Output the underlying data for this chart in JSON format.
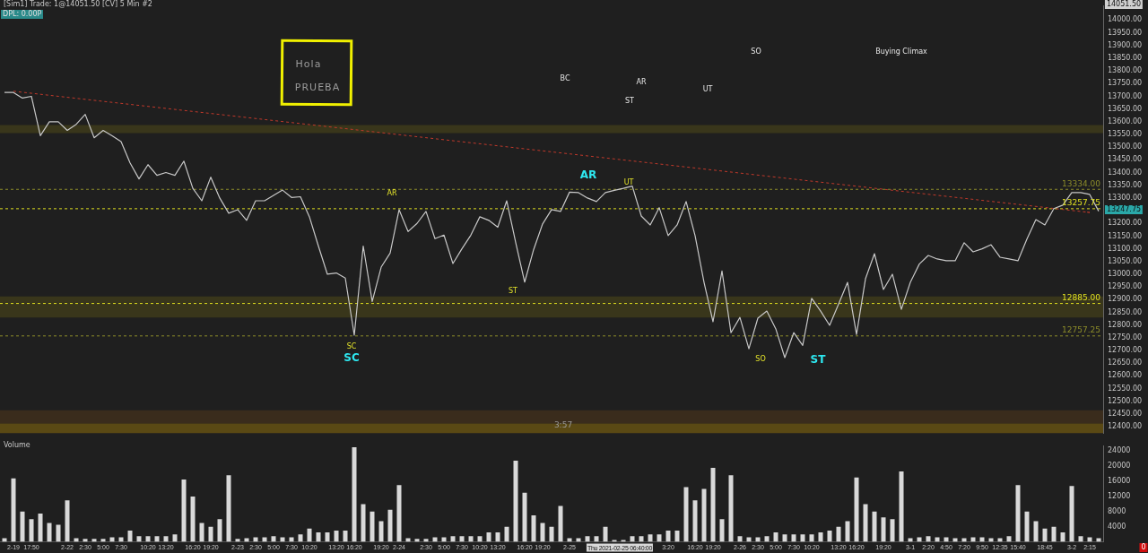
{
  "chart_data": [
    {
      "type": "line",
      "title": "[Sim1] Trade: 1@14051.50 [CV] 5 Min #2",
      "subtitle": "DPL: 0.00P",
      "categories": [
        null,
        "2-19",
        null,
        null,
        null,
        null,
        null,
        null,
        null,
        null,
        null,
        null,
        null,
        null,
        null,
        null,
        null,
        null,
        null,
        null,
        null,
        null,
        null,
        null,
        null,
        null,
        null,
        null,
        null,
        null,
        null,
        null,
        null,
        null,
        null,
        null,
        null,
        null,
        null,
        null,
        null,
        null,
        null,
        null,
        null,
        null,
        null,
        null,
        null,
        null,
        null,
        null,
        null,
        null,
        null,
        null,
        null,
        null,
        null,
        null,
        null,
        null,
        null,
        null,
        null,
        null,
        null,
        null,
        null,
        null,
        null,
        null,
        null,
        null,
        null,
        null,
        null,
        null,
        null,
        null,
        null,
        null,
        null,
        null,
        null,
        null,
        null,
        null,
        null,
        null,
        null,
        null,
        null,
        null,
        null,
        null,
        null,
        null,
        null,
        null,
        null,
        null,
        null,
        null,
        null,
        null,
        null,
        null,
        null,
        null,
        null,
        null,
        null,
        null,
        null,
        null,
        null,
        null,
        null,
        null,
        null,
        "2:15",
        null
      ],
      "ylim": [
        12375,
        14055
      ],
      "tick_labels": "y",
      "yticks": [
        {
          "value": 12400,
          "label": "12400.00"
        },
        {
          "value": 12450,
          "label": "12450.00"
        },
        {
          "value": 12500,
          "label": "12500.00"
        },
        {
          "value": 12550,
          "label": "12550.00"
        },
        {
          "value": 12600,
          "label": "12600.00"
        },
        {
          "value": 12650,
          "label": "12650.00"
        },
        {
          "value": 12700,
          "label": "12700.00"
        },
        {
          "value": 12750,
          "label": "12750.00"
        },
        {
          "value": 12800,
          "label": "12800.00"
        },
        {
          "value": 12850,
          "label": "12850.00"
        },
        {
          "value": 12900,
          "label": "12900.00"
        },
        {
          "value": 12950,
          "label": "12950.00"
        },
        {
          "value": 13000,
          "label": "13000.00"
        },
        {
          "value": 13050,
          "label": "13050.00"
        },
        {
          "value": 13100,
          "label": "13100.00"
        },
        {
          "value": 13150,
          "label": "13150.00"
        },
        {
          "value": 13200,
          "label": "13200.00"
        },
        {
          "value": 13300,
          "label": "13300.00"
        },
        {
          "value": 13350,
          "label": "13350.00"
        },
        {
          "value": 13400,
          "label": "13400.00"
        },
        {
          "value": 13450,
          "label": "13450.00"
        },
        {
          "value": 13500,
          "label": "13500.00"
        },
        {
          "value": 13550,
          "label": "13550.00"
        },
        {
          "value": 13600,
          "label": "13600.00"
        },
        {
          "value": 13650,
          "label": "13650.00"
        },
        {
          "value": 13700,
          "label": "13700.00"
        },
        {
          "value": 13750,
          "label": "13750.00"
        },
        {
          "value": 13800,
          "label": "13800.00"
        },
        {
          "value": 13850,
          "label": "13850.00"
        },
        {
          "value": 13900,
          "label": "13900.00"
        },
        {
          "value": 13950,
          "label": "13950.00"
        },
        {
          "value": 14000,
          "label": "14000.00"
        }
      ],
      "series": [
        {
          "color": "#c8c8c8",
          "values": [
            13715,
            13715,
            13693,
            13700,
            13545,
            13600,
            13600,
            13566,
            13590,
            13629,
            13537,
            13566,
            13545,
            13522,
            13438,
            13375,
            13431,
            13389,
            13400,
            13389,
            13445,
            13338,
            13289,
            13382,
            13300,
            13240,
            13254,
            13212,
            13289,
            13289,
            13310,
            13331,
            13302,
            13305,
            13226,
            13111,
            13000,
            13005,
            12985,
            12760,
            13111,
            12893,
            13028,
            13083,
            13254,
            13168,
            13200,
            13247,
            13140,
            13154,
            13042,
            13100,
            13154,
            13226,
            13212,
            13185,
            13289,
            13125,
            12969,
            13097,
            13198,
            13254,
            13247,
            13323,
            13321,
            13300,
            13286,
            13321,
            13330,
            13338,
            13347,
            13229,
            13194,
            13262,
            13152,
            13194,
            13286,
            13152,
            12968,
            12813,
            13013,
            12770,
            12830,
            12707,
            12827,
            12855,
            12785,
            12672,
            12770,
            12720,
            12905,
            12855,
            12799,
            12883,
            12968,
            12763,
            12982,
            13081,
            12940,
            13000,
            12862,
            12968,
            13040,
            13074,
            13060,
            13053,
            13053,
            13124,
            13088,
            13100,
            13116,
            13067,
            13060,
            13053,
            13138,
            13215,
            13194,
            13258,
            13272,
            13321,
            13321,
            13314,
            13248
          ]
        },
        {
          "type": "line",
          "color": "#c0392b",
          "line_style": "dashed",
          "x": [
            "2-19",
            "2:15"
          ],
          "values": [
            13720,
            13243
          ]
        }
      ],
      "bands": [
        {
          "axis": "y",
          "from": 13555,
          "to": 13587,
          "color": "#39361b"
        },
        {
          "axis": "y",
          "from": 12830,
          "to": 12913,
          "color": "#39361b"
        },
        {
          "axis": "y",
          "from": 12413,
          "to": 12465,
          "color": "#3a2c1c"
        },
        {
          "axis": "y",
          "from": 12375,
          "to": 12413,
          "color": "#5a4914"
        }
      ],
      "ref_lines": [
        {
          "axis": "y",
          "value": 13334,
          "label": "13334.00",
          "color": "#8d8d2a",
          "line_style": "dashed"
        },
        {
          "axis": "y",
          "value": 13257.75,
          "label": "13257.75",
          "color": "#e0e020",
          "line_style": "dashed"
        },
        {
          "axis": "y",
          "value": 12885,
          "label": "12885.00",
          "color": "#e0e020",
          "line_style": "dashed"
        },
        {
          "axis": "y",
          "value": 12757.25,
          "label": "12757.25",
          "color": "#8d8d2a",
          "line_style": "dashed"
        }
      ],
      "annotations": [
        "SC",
        "SC",
        "AR",
        "ST",
        "AR",
        "UT",
        "BC",
        "ST",
        "AR",
        "UT",
        "SO",
        "Buying Climax",
        "SO",
        "ST",
        "13247.75",
        "14051.50",
        "Hola",
        "PRUEBA",
        "3:57"
      ]
    },
    {
      "type": "bar",
      "title": "Volume",
      "color": "#d9d9d9",
      "categories": [
        null,
        "2-19",
        null,
        "17:50",
        null,
        null,
        null,
        "2-22",
        null,
        "2:30",
        null,
        "5:00",
        null,
        "7:30",
        null,
        null,
        "10:20",
        null,
        "13:20",
        null,
        null,
        "16:20",
        null,
        "19:20",
        null,
        null,
        "2-23",
        null,
        "2:30",
        null,
        "5:00",
        null,
        "7:30",
        null,
        "10:20",
        null,
        null,
        "13:20",
        null,
        "16:20",
        null,
        null,
        "19:20",
        null,
        "2-24",
        null,
        null,
        "2:30",
        null,
        "5:00",
        null,
        "7:30",
        null,
        "10:20",
        null,
        "13:20",
        null,
        null,
        "16:20",
        null,
        "19:20",
        null,
        null,
        "2-25",
        null,
        null,
        null,
        null,
        null,
        null,
        null,
        null,
        null,
        null,
        "3:20",
        null,
        null,
        "16:20",
        null,
        "19:20",
        null,
        null,
        "2-26",
        null,
        "2:30",
        null,
        "5:00",
        null,
        "7:30",
        null,
        "10:20",
        null,
        null,
        "13:20",
        null,
        "16:20",
        null,
        null,
        "19:20",
        null,
        null,
        "3-1",
        null,
        "2:20",
        null,
        "4:50",
        null,
        "7:20",
        null,
        "9:50",
        null,
        "12:35",
        null,
        "15:40",
        null,
        null,
        "18:45",
        null,
        null,
        "3-2",
        null,
        "2:15",
        null
      ],
      "values": [
        1000,
        16800,
        8000,
        6000,
        7500,
        5000,
        4500,
        11000,
        1000,
        800,
        800,
        800,
        1200,
        1200,
        3000,
        1500,
        1500,
        1500,
        1500,
        2000,
        16500,
        12000,
        5000,
        4000,
        6000,
        17600,
        800,
        1000,
        1200,
        1200,
        1500,
        1200,
        1200,
        2000,
        3500,
        2500,
        2500,
        3000,
        3000,
        25000,
        10000,
        8000,
        5500,
        8500,
        15000,
        1000,
        800,
        800,
        1200,
        1200,
        1500,
        1500,
        1500,
        1500,
        2500,
        2500,
        4000,
        21500,
        13000,
        7000,
        5000,
        4000,
        9500,
        1000,
        1000,
        1500,
        1500,
        4000,
        500,
        500,
        1500,
        1500,
        2000,
        2000,
        3000,
        3000,
        14500,
        11000,
        14000,
        19600,
        6000,
        17600,
        1500,
        1200,
        1200,
        1500,
        2500,
        2000,
        2000,
        2000,
        2000,
        2500,
        3000,
        4000,
        5500,
        17000,
        10000,
        8000,
        6500,
        6000,
        18600,
        1000,
        1200,
        1500,
        1200,
        1200,
        1000,
        1000,
        1200,
        1200,
        1000,
        1000,
        1500,
        15000,
        8000,
        5500,
        3500,
        4000,
        2500,
        14800,
        1500,
        1200,
        1000
      ],
      "ylim": [
        0,
        25500
      ],
      "yticks": [
        4000,
        8000,
        12000,
        16000,
        20000,
        24000
      ],
      "annotations": [
        "Thu 2021-02-25  06:40:00",
        "0"
      ]
    }
  ]
}
